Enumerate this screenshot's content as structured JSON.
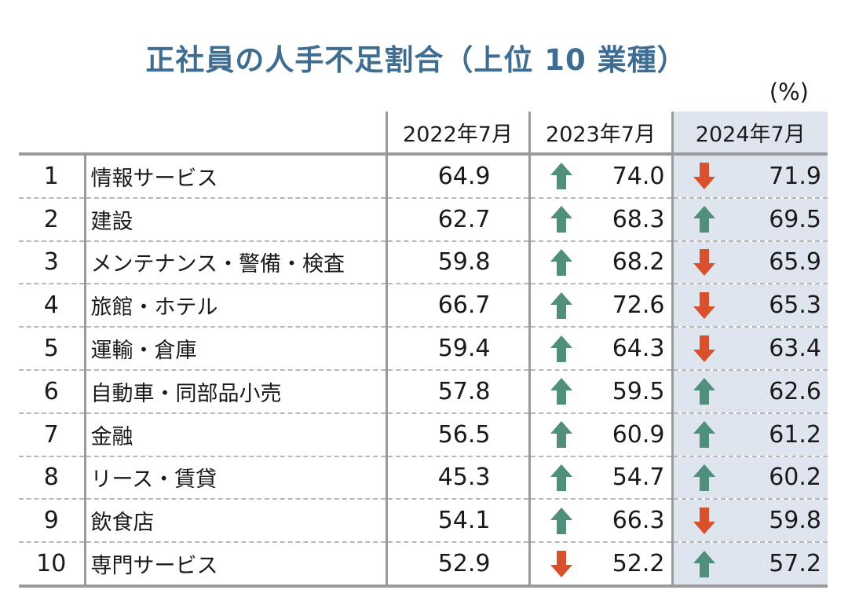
{
  "chart_data": {
    "type": "table",
    "title": "正社員の人手不足割合（上位 10 業種）",
    "unit": "(%)",
    "columns": [
      "2022年7月",
      "2023年7月",
      "2024年7月"
    ],
    "colors": {
      "up": "#4f8f7c",
      "down": "#d9512c",
      "title": "#3f6d92",
      "highlight": "#dfe5ef"
    },
    "rows": [
      {
        "rank": "1",
        "name": "情報サービス",
        "v2022": "64.9",
        "v2023": "74.0",
        "trend2023": "up",
        "v2024": "71.9",
        "trend2024": "down"
      },
      {
        "rank": "2",
        "name": "建設",
        "v2022": "62.7",
        "v2023": "68.3",
        "trend2023": "up",
        "v2024": "69.5",
        "trend2024": "up"
      },
      {
        "rank": "3",
        "name": "メンテナンス・警備・検査",
        "v2022": "59.8",
        "v2023": "68.2",
        "trend2023": "up",
        "v2024": "65.9",
        "trend2024": "down"
      },
      {
        "rank": "4",
        "name": "旅館・ホテル",
        "v2022": "66.7",
        "v2023": "72.6",
        "trend2023": "up",
        "v2024": "65.3",
        "trend2024": "down"
      },
      {
        "rank": "5",
        "name": "運輸・倉庫",
        "v2022": "59.4",
        "v2023": "64.3",
        "trend2023": "up",
        "v2024": "63.4",
        "trend2024": "down"
      },
      {
        "rank": "6",
        "name": "自動車・同部品小売",
        "v2022": "57.8",
        "v2023": "59.5",
        "trend2023": "up",
        "v2024": "62.6",
        "trend2024": "up"
      },
      {
        "rank": "7",
        "name": "金融",
        "v2022": "56.5",
        "v2023": "60.9",
        "trend2023": "up",
        "v2024": "61.2",
        "trend2024": "up"
      },
      {
        "rank": "8",
        "name": "リース・賃貸",
        "v2022": "45.3",
        "v2023": "54.7",
        "trend2023": "up",
        "v2024": "60.2",
        "trend2024": "up"
      },
      {
        "rank": "9",
        "name": "飲食店",
        "v2022": "54.1",
        "v2023": "66.3",
        "trend2023": "up",
        "v2024": "59.8",
        "trend2024": "down"
      },
      {
        "rank": "10",
        "name": "専門サービス",
        "v2022": "52.9",
        "v2023": "52.2",
        "trend2023": "down",
        "v2024": "57.2",
        "trend2024": "up"
      }
    ]
  }
}
